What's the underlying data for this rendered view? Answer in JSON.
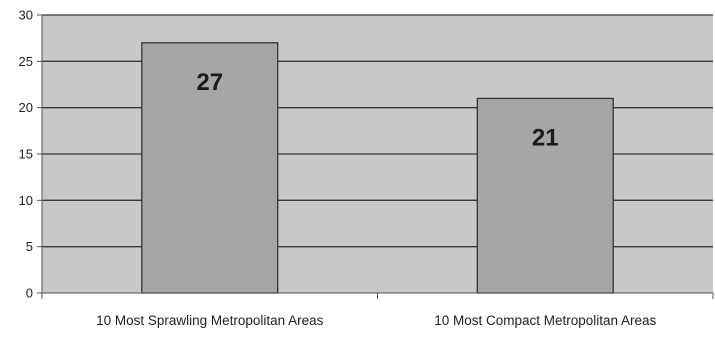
{
  "chart_data": {
    "type": "bar",
    "categories": [
      "10 Most Sprawling Metropolitan Areas",
      "10 Most Compact Metropolitan Areas"
    ],
    "values": [
      27,
      21
    ],
    "data_labels": [
      "27",
      "21"
    ],
    "title": "",
    "xlabel": "",
    "ylabel": "",
    "ylim": [
      0,
      30
    ],
    "yticks": [
      0,
      5,
      10,
      15,
      20,
      25,
      30
    ],
    "ytick_labels": [
      "0",
      "5",
      "10",
      "15",
      "20",
      "25",
      "30"
    ],
    "grid": true,
    "legend": "none",
    "colors": {
      "plot_background": "#c8c8c8",
      "bar_fill": "#a6a6a6",
      "bar_stroke": "#333333",
      "gridline": "#3a3a3a",
      "axis": "#555555"
    }
  }
}
